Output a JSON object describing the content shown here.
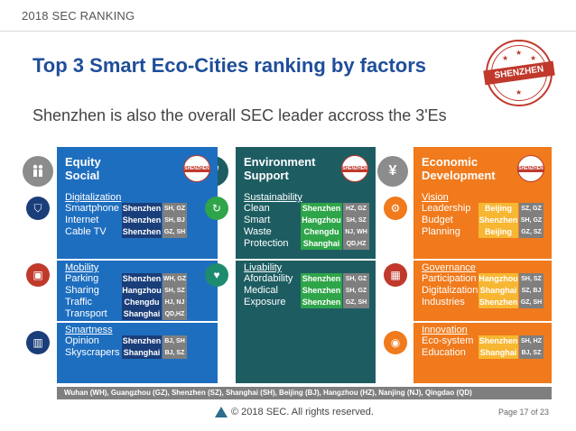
{
  "header": {
    "label": "2018 SEC RANKING"
  },
  "title": "Top 3 Smart Eco-Cities ranking by factors",
  "subtitle": "Shenzhen is also the overall SEC leader accross the 3'Es",
  "stamp": {
    "text": "SHENZHEN"
  },
  "colors": {
    "equity": "#1e6ebf",
    "environment": "#1d5d62",
    "economic": "#f07a1c",
    "accent": "#c0392b"
  },
  "columns": [
    {
      "title": "Equity Social",
      "title_lines": [
        "Equity",
        "Social"
      ],
      "color": "#1e6ebf",
      "big_icon": "people-icon",
      "stamp_text": "SHENZHEN",
      "sections": [
        {
          "name": "Digitalization",
          "icon": "shield-icon",
          "rows": [
            {
              "label": "Smartphone",
              "first": "Shenzhen",
              "others": "SH, GZ"
            },
            {
              "label": "Internet",
              "first": "Shenzhen",
              "others": "SH, BJ"
            },
            {
              "label": "Cable TV",
              "first": "Shenzhen",
              "others": "GZ, SH"
            }
          ]
        },
        {
          "name": "Mobility",
          "icon": "bus-icon",
          "rows": [
            {
              "label": "Parking",
              "first": "Shenzhen",
              "others": "WH, GZ"
            },
            {
              "label": "Sharing",
              "first": "Hangzhou",
              "others": "SH, SZ"
            },
            {
              "label": "Traffic",
              "first": "Chengdu",
              "others": "HJ, NJ"
            },
            {
              "label": "Transport",
              "first": "Shanghai",
              "others": "QD,HZ"
            }
          ]
        },
        {
          "name": "Smartness",
          "icon": "buildings-icon",
          "rows": [
            {
              "label": "Opinion",
              "first": "Shenzhen",
              "others": "BJ, SH"
            },
            {
              "label": "Skyscrapers",
              "first": "Shanghai",
              "others": "BJ, SZ"
            }
          ]
        }
      ]
    },
    {
      "title": "Environment Support",
      "title_lines": [
        "Environment",
        "Support"
      ],
      "color": "#1d5d62",
      "big_icon": "leaf-icon",
      "stamp_text": "SHENZHEN",
      "sections": [
        {
          "name": "Sustainability",
          "icon": "recycle-icon",
          "rows": [
            {
              "label": "Clean",
              "first": "Shenzhen",
              "others": "HZ, GZ"
            },
            {
              "label": "Smart",
              "first": "Hangzhou",
              "others": "SH, SZ"
            },
            {
              "label": "Waste",
              "first": "Chengdu",
              "others": "NJ, WH"
            },
            {
              "label": "Protection",
              "first": "Shanghai",
              "others": "QD,HZ"
            }
          ]
        },
        {
          "name": "Livability",
          "icon": "heart-icon",
          "rows": [
            {
              "label": "Afordability",
              "first": "Shenzhen",
              "others": "SH, GZ"
            },
            {
              "label": "Medical",
              "first": "Shenzhen",
              "others": "SH, GZ"
            },
            {
              "label": "Exposure",
              "first": "Shenzhen",
              "others": "GZ, SH"
            }
          ]
        }
      ]
    },
    {
      "title": "Economic Development",
      "title_lines": [
        "Economic",
        "Development"
      ],
      "color": "#f07a1c",
      "big_icon": "yen-icon",
      "stamp_text": "SHENZHEN",
      "sections": [
        {
          "name": "Vision",
          "icon": "gear-icon",
          "rows": [
            {
              "label": "Leadership",
              "first": "Beijing",
              "others": "SZ, GZ"
            },
            {
              "label": "Budget",
              "first": "Shenzhen",
              "others": "SH, GZ"
            },
            {
              "label": "Planning",
              "first": "Beijing",
              "others": "GZ, SZ"
            }
          ]
        },
        {
          "name": "Governance",
          "icon": "gift-icon",
          "rows": [
            {
              "label": "Participation",
              "first": "Hangzhou",
              "others": "SH, SZ"
            },
            {
              "label": "Digitalization",
              "first": "Shanghai",
              "others": "SZ, BJ"
            },
            {
              "label": "Industries",
              "first": "Shenzhen",
              "others": "GZ, SH"
            }
          ]
        },
        {
          "name": "Innovation",
          "icon": "lightbulb-icon",
          "rows": [
            {
              "label": "Eco-system",
              "first": "Shenzhen",
              "others": "SH, HZ"
            },
            {
              "label": "Education",
              "first": "Shanghai",
              "others": "BJ, SZ"
            }
          ]
        }
      ]
    }
  ],
  "legend": "Wuhan (WH), Guangzhou (GZ), Shenzhen (SZ), Shanghai (SH), Beijing (BJ), Hangzhou (HZ), Nanjing (NJ), Qingdao (QD)",
  "footer": {
    "copyright": "© 2018 SEC.  All rights reserved.",
    "page": "Page 17 of 23"
  }
}
